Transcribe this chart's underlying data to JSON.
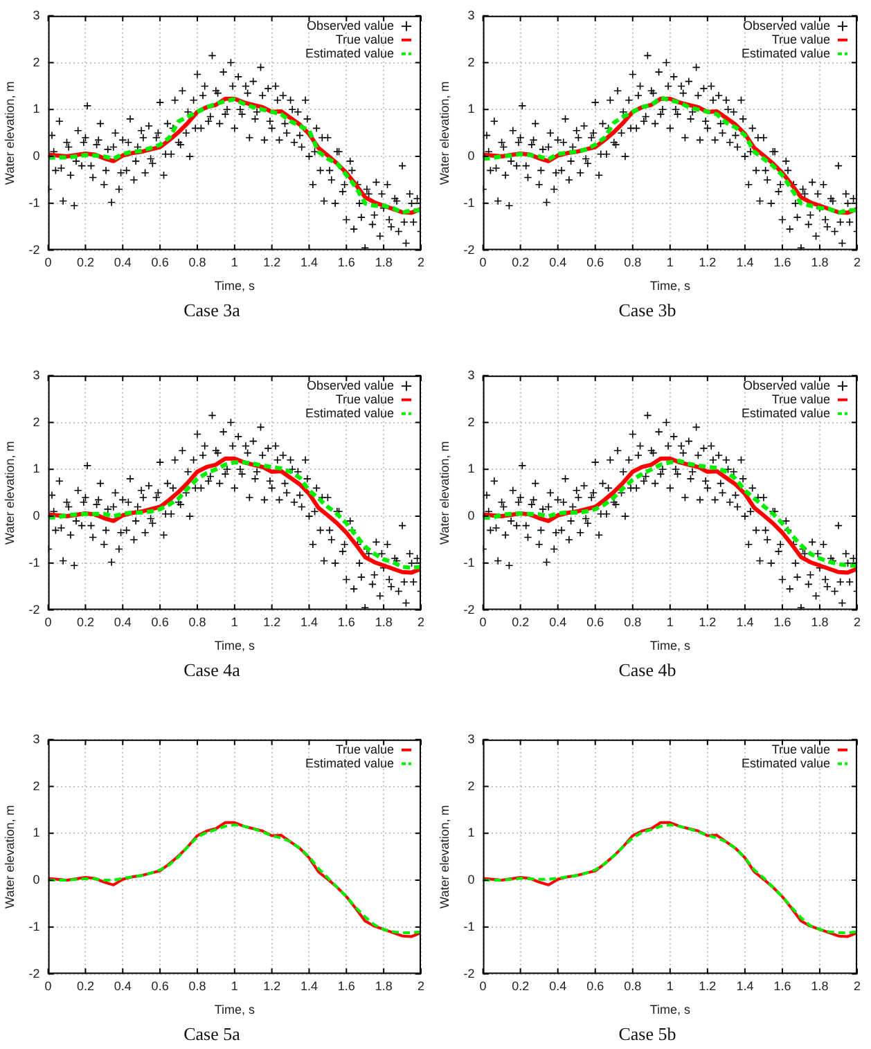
{
  "chart_data": [
    {
      "type": "line",
      "title": "Case 3a",
      "xlabel": "Time, s",
      "ylabel": "Water elevation, m",
      "xlim": [
        0,
        2
      ],
      "ylim": [
        -2,
        3
      ],
      "xticks": [
        0,
        0.2,
        0.4,
        0.6,
        0.8,
        1,
        1.2,
        1.4,
        1.6,
        1.8,
        2
      ],
      "yticks": [
        -2,
        -1,
        0,
        1,
        2,
        3
      ],
      "grid": true,
      "legend": "top right",
      "x": [
        0,
        0.05,
        0.1,
        0.15,
        0.2,
        0.25,
        0.3,
        0.35,
        0.4,
        0.45,
        0.5,
        0.55,
        0.6,
        0.65,
        0.7,
        0.75,
        0.8,
        0.85,
        0.9,
        0.95,
        1,
        1.05,
        1.1,
        1.15,
        1.2,
        1.25,
        1.3,
        1.35,
        1.4,
        1.45,
        1.5,
        1.55,
        1.6,
        1.65,
        1.7,
        1.75,
        1.8,
        1.85,
        1.9,
        1.95,
        2
      ],
      "series": [
        {
          "name": "Observed value",
          "type": "scatter",
          "marker": "cross",
          "color": "#000000",
          "x": [
            0,
            0.02,
            0.04,
            0.06,
            0.08,
            0.1,
            0.12,
            0.14,
            0.16,
            0.18,
            0.2,
            0.21,
            0.24,
            0.26,
            0.28,
            0.3,
            0.32,
            0.34,
            0.36,
            0.38,
            0.4,
            0.42,
            0.44,
            0.46,
            0.48,
            0.5,
            0.52,
            0.54,
            0.56,
            0.58,
            0.6,
            0.62,
            0.64,
            0.66,
            0.68,
            0.7,
            0.72,
            0.74,
            0.76,
            0.78,
            0.8,
            0.82,
            0.84,
            0.86,
            0.88,
            0.9,
            0.92,
            0.94,
            0.96,
            0.98,
            1,
            1.02,
            1.04,
            1.06,
            1.08,
            1.1,
            1.12,
            1.14,
            1.16,
            1.18,
            1.2,
            1.22,
            1.24,
            1.26,
            1.28,
            1.3,
            1.32,
            1.34,
            1.36,
            1.38,
            1.4,
            1.42,
            1.44,
            1.46,
            1.48,
            1.5,
            1.52,
            1.54,
            1.56,
            1.58,
            1.6,
            1.62,
            1.64,
            1.66,
            1.68,
            1.7,
            1.72,
            1.74,
            1.76,
            1.78,
            1.8,
            1.82,
            1.84,
            1.86,
            1.88,
            1.9,
            1.92,
            1.94,
            1.96,
            1.98,
            2,
            0.03,
            0.07,
            0.11,
            0.15,
            0.19,
            0.23,
            0.27,
            0.31,
            0.35,
            0.39,
            0.43,
            0.47,
            0.51,
            0.55,
            0.59,
            0.63,
            0.67,
            0.71,
            0.75,
            0.79,
            0.83,
            0.87,
            0.91,
            0.95,
            0.99,
            1.03,
            1.07,
            1.11,
            1.15,
            1.19,
            1.23,
            1.27,
            1.31,
            1.35,
            1.39,
            1.43,
            1.47,
            1.51,
            1.55,
            1.59,
            1.63,
            1.67,
            1.71,
            1.75,
            1.79,
            1.83,
            1.87,
            1.91,
            1.95
          ],
          "values": [
            -0.7,
            0.45,
            -0.3,
            0.75,
            -0.95,
            0.3,
            -0.4,
            -1.05,
            0.55,
            -0.2,
            0.4,
            1.08,
            -0.45,
            0.25,
            0.7,
            -0.6,
            0.15,
            -0.98,
            0.5,
            -0.7,
            0.35,
            -0.3,
            0.8,
            -0.5,
            0.2,
            0.55,
            -0.35,
            0.65,
            -0.15,
            0.4,
            1.15,
            -0.4,
            0.7,
            0.05,
            1.2,
            0.3,
            1.4,
            0.5,
            0.0,
            1.2,
            1.75,
            0.6,
            1.5,
            0.75,
            2.15,
            1.4,
            0.7,
            1.8,
            1.0,
            2.0,
            0.6,
            1.7,
            0.9,
            1.5,
            0.4,
            1.6,
            0.95,
            1.9,
            0.35,
            1.45,
            0.6,
            1.5,
            0.35,
            1.3,
            0.5,
            1.2,
            0.3,
            0.95,
            0.2,
            1.2,
            0.0,
            -0.6,
            0.6,
            -0.3,
            -0.95,
            0.4,
            -0.5,
            -1.0,
            0.1,
            -0.75,
            -1.35,
            -0.1,
            -1.55,
            -0.6,
            -1.3,
            -1.95,
            -0.8,
            -1.45,
            -0.55,
            -1.7,
            -1.1,
            -0.6,
            -1.5,
            -0.9,
            -1.6,
            -0.2,
            -1.85,
            -0.8,
            -1.4,
            -0.9,
            -1.6,
            0.1,
            -0.25,
            0.2,
            -0.1,
            0.3,
            -0.2,
            0.35,
            -0.3,
            0.2,
            -0.35,
            0.3,
            -0.1,
            0.4,
            -0.05,
            0.5,
            0.05,
            0.6,
            0.25,
            0.95,
            0.6,
            1.3,
            0.85,
            1.35,
            0.9,
            1.5,
            1.0,
            1.35,
            0.8,
            1.3,
            0.75,
            1.2,
            0.7,
            1.0,
            0.45,
            0.8,
            0.1,
            0.4,
            -0.3,
            0.1,
            -0.6,
            -0.3,
            -1.0,
            -0.7,
            -1.25,
            -0.8,
            -1.35,
            -0.95,
            -1.4,
            -1.0
          ]
        },
        {
          "name": "True value",
          "color": "#ff0000",
          "values": [
            0.04,
            0.02,
            0.0,
            0.03,
            0.06,
            0.04,
            -0.04,
            -0.1,
            0.02,
            0.07,
            0.1,
            0.15,
            0.2,
            0.35,
            0.52,
            0.72,
            0.95,
            1.05,
            1.1,
            1.23,
            1.23,
            1.15,
            1.1,
            1.05,
            0.95,
            0.96,
            0.82,
            0.68,
            0.48,
            0.18,
            0.02,
            -0.15,
            -0.35,
            -0.6,
            -0.87,
            -0.98,
            -1.05,
            -1.12,
            -1.19,
            -1.2,
            -1.12
          ]
        },
        {
          "name": "Estimated value",
          "line_style": "dashed",
          "color": "#00ee00",
          "values": [
            -0.03,
            -0.02,
            -0.02,
            0.0,
            0.03,
            0.02,
            0.0,
            -0.05,
            0.05,
            0.1,
            0.12,
            0.18,
            0.25,
            0.4,
            0.75,
            0.85,
            0.95,
            1.05,
            1.12,
            1.18,
            1.22,
            1.12,
            1.05,
            1.0,
            0.95,
            0.9,
            0.75,
            0.65,
            0.55,
            0.1,
            -0.05,
            -0.15,
            -0.4,
            -0.65,
            -1.0,
            -1.05,
            -1.05,
            -1.1,
            -1.2,
            -1.15,
            -1.15
          ]
        }
      ]
    },
    {
      "type": "line",
      "title": "Case 3b",
      "xlabel": "Time, s",
      "ylabel": "Water elevation, m",
      "xlim": [
        0,
        2
      ],
      "ylim": [
        -2,
        3
      ],
      "xticks": [
        0,
        0.2,
        0.4,
        0.6,
        0.8,
        1,
        1.2,
        1.4,
        1.6,
        1.8,
        2
      ],
      "yticks": [
        -2,
        -1,
        0,
        1,
        2,
        3
      ],
      "grid": true,
      "legend": "top right",
      "x": [
        0,
        0.05,
        0.1,
        0.15,
        0.2,
        0.25,
        0.3,
        0.35,
        0.4,
        0.45,
        0.5,
        0.55,
        0.6,
        0.65,
        0.7,
        0.75,
        0.8,
        0.85,
        0.9,
        0.95,
        1,
        1.05,
        1.1,
        1.15,
        1.2,
        1.25,
        1.3,
        1.35,
        1.4,
        1.45,
        1.5,
        1.55,
        1.6,
        1.65,
        1.7,
        1.75,
        1.8,
        1.85,
        1.9,
        1.95,
        2
      ],
      "series": [
        {
          "name": "Observed value",
          "type": "scatter",
          "marker": "cross",
          "color": "#000000",
          "x": [
            0,
            0.02,
            0.04,
            0.06,
            0.08,
            0.1,
            0.12,
            0.14,
            0.16,
            0.18,
            0.2,
            0.21,
            0.24,
            0.26,
            0.28,
            0.3,
            0.32,
            0.34,
            0.36,
            0.38,
            0.4,
            0.42,
            0.44,
            0.46,
            0.48,
            0.5,
            0.52,
            0.54,
            0.56,
            0.58,
            0.6,
            0.62,
            0.64,
            0.66,
            0.68,
            0.7,
            0.72,
            0.74,
            0.76,
            0.78,
            0.8,
            0.82,
            0.84,
            0.86,
            0.88,
            0.9,
            0.92,
            0.94,
            0.96,
            0.98,
            1,
            1.02,
            1.04,
            1.06,
            1.08,
            1.1,
            1.12,
            1.14,
            1.16,
            1.18,
            1.2,
            1.22,
            1.24,
            1.26,
            1.28,
            1.3,
            1.32,
            1.34,
            1.36,
            1.38,
            1.4,
            1.42,
            1.44,
            1.46,
            1.48,
            1.5,
            1.52,
            1.54,
            1.56,
            1.58,
            1.6,
            1.62,
            1.64,
            1.66,
            1.68,
            1.7,
            1.72,
            1.74,
            1.76,
            1.78,
            1.8,
            1.82,
            1.84,
            1.86,
            1.88,
            1.9,
            1.92,
            1.94,
            1.96,
            1.98,
            2,
            0.03,
            0.07,
            0.11,
            0.15,
            0.19,
            0.23,
            0.27,
            0.31,
            0.35,
            0.39,
            0.43,
            0.47,
            0.51,
            0.55,
            0.59,
            0.63,
            0.67,
            0.71,
            0.75,
            0.79,
            0.83,
            0.87,
            0.91,
            0.95,
            0.99,
            1.03,
            1.07,
            1.11,
            1.15,
            1.19,
            1.23,
            1.27,
            1.31,
            1.35,
            1.39,
            1.43,
            1.47,
            1.51,
            1.55,
            1.59,
            1.63,
            1.67,
            1.71,
            1.75,
            1.79,
            1.83,
            1.87,
            1.91,
            1.95
          ],
          "values": [
            -0.7,
            0.45,
            -0.3,
            0.75,
            -0.95,
            0.3,
            -0.4,
            -1.05,
            0.55,
            -0.2,
            0.4,
            1.08,
            -0.45,
            0.25,
            0.7,
            -0.6,
            0.15,
            -0.98,
            0.5,
            -0.7,
            0.35,
            -0.3,
            0.8,
            -0.5,
            0.2,
            0.55,
            -0.35,
            0.65,
            -0.15,
            0.4,
            1.15,
            -0.4,
            0.7,
            0.05,
            1.2,
            0.3,
            1.4,
            0.5,
            0.0,
            1.2,
            1.75,
            0.6,
            1.5,
            0.75,
            2.15,
            1.4,
            0.7,
            1.8,
            1.0,
            2.0,
            0.6,
            1.7,
            0.9,
            1.5,
            0.4,
            1.6,
            0.95,
            1.9,
            0.35,
            1.45,
            0.6,
            1.5,
            0.35,
            1.3,
            0.5,
            1.2,
            0.3,
            0.95,
            0.2,
            1.2,
            0.0,
            -0.6,
            0.6,
            -0.3,
            -0.95,
            0.4,
            -0.5,
            -1.0,
            0.1,
            -0.75,
            -1.35,
            -0.1,
            -1.55,
            -0.6,
            -1.3,
            -1.95,
            -0.8,
            -1.45,
            -0.55,
            -1.7,
            -1.1,
            -0.6,
            -1.5,
            -0.9,
            -1.6,
            -0.2,
            -1.85,
            -0.8,
            -1.4,
            -0.9,
            -1.6,
            0.1,
            -0.25,
            0.2,
            -0.1,
            0.3,
            -0.2,
            0.35,
            -0.3,
            0.2,
            -0.35,
            0.3,
            -0.1,
            0.4,
            -0.05,
            0.5,
            0.05,
            0.6,
            0.25,
            0.95,
            0.6,
            1.3,
            0.85,
            1.35,
            0.9,
            1.5,
            1.0,
            1.35,
            0.8,
            1.3,
            0.75,
            1.2,
            0.7,
            1.0,
            0.45,
            0.8,
            0.1,
            0.4,
            -0.3,
            0.1,
            -0.6,
            -0.3,
            -1.0,
            -0.7,
            -1.25,
            -0.8,
            -1.35,
            -0.95,
            -1.4,
            -1.0
          ]
        },
        {
          "name": "True value",
          "color": "#ff0000",
          "values": [
            0.04,
            0.02,
            0.0,
            0.03,
            0.06,
            0.04,
            -0.04,
            -0.1,
            0.02,
            0.07,
            0.1,
            0.15,
            0.2,
            0.35,
            0.52,
            0.72,
            0.95,
            1.05,
            1.1,
            1.23,
            1.23,
            1.15,
            1.1,
            1.05,
            0.95,
            0.96,
            0.82,
            0.68,
            0.48,
            0.18,
            0.02,
            -0.15,
            -0.35,
            -0.6,
            -0.87,
            -0.98,
            -1.05,
            -1.12,
            -1.19,
            -1.2,
            -1.12
          ]
        },
        {
          "name": "Estimated value",
          "line_style": "dashed",
          "color": "#00ee00",
          "values": [
            -0.05,
            -0.03,
            0.0,
            0.02,
            0.05,
            0.03,
            0.0,
            -0.06,
            0.05,
            0.08,
            0.1,
            0.15,
            0.25,
            0.4,
            0.72,
            0.85,
            0.95,
            1.05,
            1.1,
            1.25,
            1.2,
            1.15,
            1.05,
            1.0,
            0.95,
            0.9,
            0.72,
            0.62,
            0.45,
            0.1,
            -0.05,
            -0.2,
            -0.4,
            -0.7,
            -1.0,
            -1.05,
            -1.1,
            -1.12,
            -1.2,
            -1.15,
            -1.15
          ]
        }
      ]
    },
    {
      "type": "line",
      "title": "Case 4a",
      "xlabel": "Time, s",
      "ylabel": "Water elevation, m",
      "xlim": [
        0,
        2
      ],
      "ylim": [
        -2,
        3
      ],
      "xticks": [
        0,
        0.2,
        0.4,
        0.6,
        0.8,
        1,
        1.2,
        1.4,
        1.6,
        1.8,
        2
      ],
      "yticks": [
        -2,
        -1,
        0,
        1,
        2,
        3
      ],
      "grid": true,
      "legend": "top right",
      "x": [
        0,
        0.05,
        0.1,
        0.15,
        0.2,
        0.25,
        0.3,
        0.35,
        0.4,
        0.45,
        0.5,
        0.55,
        0.6,
        0.65,
        0.7,
        0.75,
        0.8,
        0.85,
        0.9,
        0.95,
        1,
        1.05,
        1.1,
        1.15,
        1.2,
        1.25,
        1.3,
        1.35,
        1.4,
        1.45,
        1.5,
        1.55,
        1.6,
        1.65,
        1.7,
        1.75,
        1.8,
        1.85,
        1.9,
        1.95,
        2
      ],
      "series": [
        {
          "name": "Observed value",
          "type": "scatter",
          "marker": "cross",
          "color": "#000000",
          "x": [
            0,
            0.02,
            0.04,
            0.06,
            0.08,
            0.1,
            0.12,
            0.14,
            0.16,
            0.18,
            0.2,
            0.21,
            0.24,
            0.26,
            0.28,
            0.3,
            0.32,
            0.34,
            0.36,
            0.38,
            0.4,
            0.42,
            0.44,
            0.46,
            0.48,
            0.5,
            0.52,
            0.54,
            0.56,
            0.58,
            0.6,
            0.62,
            0.64,
            0.66,
            0.68,
            0.7,
            0.72,
            0.74,
            0.76,
            0.78,
            0.8,
            0.82,
            0.84,
            0.86,
            0.88,
            0.9,
            0.92,
            0.94,
            0.96,
            0.98,
            1,
            1.02,
            1.04,
            1.06,
            1.08,
            1.1,
            1.12,
            1.14,
            1.16,
            1.18,
            1.2,
            1.22,
            1.24,
            1.26,
            1.28,
            1.3,
            1.32,
            1.34,
            1.36,
            1.38,
            1.4,
            1.42,
            1.44,
            1.46,
            1.48,
            1.5,
            1.52,
            1.54,
            1.56,
            1.58,
            1.6,
            1.62,
            1.64,
            1.66,
            1.68,
            1.7,
            1.72,
            1.74,
            1.76,
            1.78,
            1.8,
            1.82,
            1.84,
            1.86,
            1.88,
            1.9,
            1.92,
            1.94,
            1.96,
            1.98,
            2,
            0.03,
            0.07,
            0.11,
            0.15,
            0.19,
            0.23,
            0.27,
            0.31,
            0.35,
            0.39,
            0.43,
            0.47,
            0.51,
            0.55,
            0.59,
            0.63,
            0.67,
            0.71,
            0.75,
            0.79,
            0.83,
            0.87,
            0.91,
            0.95,
            0.99,
            1.03,
            1.07,
            1.11,
            1.15,
            1.19,
            1.23,
            1.27,
            1.31,
            1.35,
            1.39,
            1.43,
            1.47,
            1.51,
            1.55,
            1.59,
            1.63,
            1.67,
            1.71,
            1.75,
            1.79,
            1.83,
            1.87,
            1.91,
            1.95
          ],
          "values": [
            -0.7,
            0.45,
            -0.3,
            0.75,
            -0.95,
            0.3,
            -0.4,
            -1.05,
            0.55,
            -0.2,
            0.4,
            1.08,
            -0.45,
            0.25,
            0.7,
            -0.6,
            0.15,
            -0.98,
            0.5,
            -0.7,
            0.35,
            -0.3,
            0.8,
            -0.5,
            0.2,
            0.55,
            -0.35,
            0.65,
            -0.15,
            0.4,
            1.15,
            -0.4,
            0.7,
            0.05,
            1.2,
            0.3,
            1.4,
            0.5,
            0.0,
            1.2,
            1.75,
            0.6,
            1.5,
            0.75,
            2.15,
            1.4,
            0.7,
            1.8,
            1.0,
            2.0,
            0.6,
            1.7,
            0.9,
            1.5,
            0.4,
            1.6,
            0.95,
            1.9,
            0.35,
            1.45,
            0.6,
            1.5,
            0.35,
            1.3,
            0.5,
            1.2,
            0.3,
            0.95,
            0.2,
            1.2,
            0.0,
            -0.6,
            0.6,
            -0.3,
            -0.95,
            0.4,
            -0.5,
            -1.0,
            0.1,
            -0.75,
            -1.35,
            -0.1,
            -1.55,
            -0.6,
            -1.3,
            -1.95,
            -0.8,
            -1.45,
            -0.55,
            -1.7,
            -1.1,
            -0.6,
            -1.5,
            -0.9,
            -1.6,
            -0.2,
            -1.85,
            -0.8,
            -1.4,
            -0.9,
            -1.6,
            0.1,
            -0.25,
            0.2,
            -0.1,
            0.3,
            -0.2,
            0.35,
            -0.3,
            0.2,
            -0.35,
            0.3,
            -0.1,
            0.4,
            -0.05,
            0.5,
            0.05,
            0.6,
            0.25,
            0.95,
            0.6,
            1.3,
            0.85,
            1.35,
            0.9,
            1.5,
            1.0,
            1.35,
            0.8,
            1.3,
            0.75,
            1.2,
            0.7,
            1.0,
            0.45,
            0.8,
            0.1,
            0.4,
            -0.3,
            0.1,
            -0.6,
            -0.3,
            -1.0,
            -0.7,
            -1.25,
            -0.8,
            -1.35,
            -0.95,
            -1.4,
            -1.0
          ]
        },
        {
          "name": "True value",
          "color": "#ff0000",
          "values": [
            0.04,
            0.02,
            0.0,
            0.03,
            0.06,
            0.04,
            -0.04,
            -0.1,
            0.02,
            0.07,
            0.1,
            0.15,
            0.2,
            0.35,
            0.52,
            0.72,
            0.95,
            1.05,
            1.1,
            1.23,
            1.23,
            1.15,
            1.1,
            1.05,
            0.95,
            0.96,
            0.82,
            0.68,
            0.48,
            0.18,
            0.02,
            -0.15,
            -0.35,
            -0.6,
            -0.87,
            -0.98,
            -1.05,
            -1.12,
            -1.19,
            -1.2,
            -1.12
          ]
        },
        {
          "name": "Estimated value",
          "line_style": "dashed",
          "color": "#00ee00",
          "values": [
            -0.03,
            -0.02,
            0.02,
            0.04,
            0.05,
            0.05,
            0.05,
            0.0,
            0.05,
            0.08,
            0.08,
            0.1,
            0.15,
            0.25,
            0.38,
            0.6,
            0.8,
            0.92,
            1.0,
            1.1,
            1.15,
            1.15,
            1.12,
            1.08,
            1.05,
            1.02,
            0.95,
            0.82,
            0.55,
            0.38,
            0.2,
            0.05,
            -0.15,
            -0.4,
            -0.65,
            -0.8,
            -0.92,
            -0.98,
            -1.08,
            -1.1,
            -1.08
          ]
        }
      ]
    },
    {
      "type": "line",
      "title": "Case 4b",
      "xlabel": "Time, s",
      "ylabel": "Water elevation, m",
      "xlim": [
        0,
        2
      ],
      "ylim": [
        -2,
        3
      ],
      "xticks": [
        0,
        0.2,
        0.4,
        0.6,
        0.8,
        1,
        1.2,
        1.4,
        1.6,
        1.8,
        2
      ],
      "yticks": [
        -2,
        -1,
        0,
        1,
        2,
        3
      ],
      "grid": true,
      "legend": "top right",
      "x": [
        0,
        0.05,
        0.1,
        0.15,
        0.2,
        0.25,
        0.3,
        0.35,
        0.4,
        0.45,
        0.5,
        0.55,
        0.6,
        0.65,
        0.7,
        0.75,
        0.8,
        0.85,
        0.9,
        0.95,
        1,
        1.05,
        1.1,
        1.15,
        1.2,
        1.25,
        1.3,
        1.35,
        1.4,
        1.45,
        1.5,
        1.55,
        1.6,
        1.65,
        1.7,
        1.75,
        1.8,
        1.85,
        1.9,
        1.95,
        2
      ],
      "series": [
        {
          "name": "Observed value",
          "type": "scatter",
          "marker": "cross",
          "color": "#000000",
          "x": [
            0,
            0.02,
            0.04,
            0.06,
            0.08,
            0.1,
            0.12,
            0.14,
            0.16,
            0.18,
            0.2,
            0.21,
            0.24,
            0.26,
            0.28,
            0.3,
            0.32,
            0.34,
            0.36,
            0.38,
            0.4,
            0.42,
            0.44,
            0.46,
            0.48,
            0.5,
            0.52,
            0.54,
            0.56,
            0.58,
            0.6,
            0.62,
            0.64,
            0.66,
            0.68,
            0.7,
            0.72,
            0.74,
            0.76,
            0.78,
            0.8,
            0.82,
            0.84,
            0.86,
            0.88,
            0.9,
            0.92,
            0.94,
            0.96,
            0.98,
            1,
            1.02,
            1.04,
            1.06,
            1.08,
            1.1,
            1.12,
            1.14,
            1.16,
            1.18,
            1.2,
            1.22,
            1.24,
            1.26,
            1.28,
            1.3,
            1.32,
            1.34,
            1.36,
            1.38,
            1.4,
            1.42,
            1.44,
            1.46,
            1.48,
            1.5,
            1.52,
            1.54,
            1.56,
            1.58,
            1.6,
            1.62,
            1.64,
            1.66,
            1.68,
            1.7,
            1.72,
            1.74,
            1.76,
            1.78,
            1.8,
            1.82,
            1.84,
            1.86,
            1.88,
            1.9,
            1.92,
            1.94,
            1.96,
            1.98,
            2,
            0.03,
            0.07,
            0.11,
            0.15,
            0.19,
            0.23,
            0.27,
            0.31,
            0.35,
            0.39,
            0.43,
            0.47,
            0.51,
            0.55,
            0.59,
            0.63,
            0.67,
            0.71,
            0.75,
            0.79,
            0.83,
            0.87,
            0.91,
            0.95,
            0.99,
            1.03,
            1.07,
            1.11,
            1.15,
            1.19,
            1.23,
            1.27,
            1.31,
            1.35,
            1.39,
            1.43,
            1.47,
            1.51,
            1.55,
            1.59,
            1.63,
            1.67,
            1.71,
            1.75,
            1.79,
            1.83,
            1.87,
            1.91,
            1.95
          ],
          "values": [
            -0.7,
            0.45,
            -0.3,
            0.75,
            -0.95,
            0.3,
            -0.4,
            -1.05,
            0.55,
            -0.2,
            0.4,
            1.08,
            -0.45,
            0.25,
            0.7,
            -0.6,
            0.15,
            -0.98,
            0.5,
            -0.7,
            0.35,
            -0.3,
            0.8,
            -0.5,
            0.2,
            0.55,
            -0.35,
            0.65,
            -0.15,
            0.4,
            1.15,
            -0.4,
            0.7,
            0.05,
            1.2,
            0.3,
            1.4,
            0.5,
            0.0,
            1.2,
            1.75,
            0.6,
            1.5,
            0.75,
            2.15,
            1.4,
            0.7,
            1.8,
            1.0,
            2.0,
            0.6,
            1.7,
            0.9,
            1.5,
            0.4,
            1.6,
            0.95,
            1.9,
            0.35,
            1.45,
            0.6,
            1.5,
            0.35,
            1.3,
            0.5,
            1.2,
            0.3,
            0.95,
            0.2,
            1.2,
            0.0,
            -0.6,
            0.6,
            -0.3,
            -0.95,
            0.4,
            -0.5,
            -1.0,
            0.1,
            -0.75,
            -1.35,
            -0.1,
            -1.55,
            -0.6,
            -1.3,
            -1.95,
            -0.8,
            -1.45,
            -0.55,
            -1.7,
            -1.1,
            -0.6,
            -1.5,
            -0.9,
            -1.6,
            -0.2,
            -1.85,
            -0.8,
            -1.4,
            -0.9,
            -1.6,
            0.1,
            -0.25,
            0.2,
            -0.1,
            0.3,
            -0.2,
            0.35,
            -0.3,
            0.2,
            -0.35,
            0.3,
            -0.1,
            0.4,
            -0.05,
            0.5,
            0.05,
            0.6,
            0.25,
            0.95,
            0.6,
            1.3,
            0.85,
            1.35,
            0.9,
            1.5,
            1.0,
            1.35,
            0.8,
            1.3,
            0.75,
            1.2,
            0.7,
            1.0,
            0.45,
            0.8,
            0.1,
            0.4,
            -0.3,
            0.1,
            -0.6,
            -0.3,
            -1.0,
            -0.7,
            -1.25,
            -0.8,
            -1.35,
            -0.95,
            -1.4,
            -1.0
          ]
        },
        {
          "name": "True value",
          "color": "#ff0000",
          "values": [
            0.04,
            0.02,
            0.0,
            0.03,
            0.06,
            0.04,
            -0.04,
            -0.1,
            0.02,
            0.07,
            0.1,
            0.15,
            0.2,
            0.35,
            0.52,
            0.72,
            0.95,
            1.05,
            1.1,
            1.23,
            1.23,
            1.15,
            1.1,
            1.05,
            0.95,
            0.96,
            0.82,
            0.68,
            0.48,
            0.18,
            0.02,
            -0.15,
            -0.35,
            -0.6,
            -0.87,
            -0.98,
            -1.05,
            -1.12,
            -1.19,
            -1.2,
            -1.12
          ]
        },
        {
          "name": "Estimated value",
          "line_style": "dashed",
          "color": "#00ee00",
          "values": [
            -0.03,
            -0.03,
            0.03,
            0.05,
            0.06,
            0.05,
            0.04,
            0.0,
            0.06,
            0.08,
            0.08,
            0.1,
            0.15,
            0.25,
            0.4,
            0.6,
            0.78,
            0.9,
            1.0,
            1.1,
            1.15,
            1.18,
            1.12,
            1.08,
            1.05,
            1.03,
            0.95,
            0.8,
            0.55,
            0.38,
            0.22,
            0.05,
            -0.15,
            -0.4,
            -0.62,
            -0.8,
            -0.9,
            -0.97,
            -1.02,
            -1.05,
            -1.05
          ]
        }
      ]
    },
    {
      "type": "line",
      "title": "Case 5a",
      "xlabel": "Time, s",
      "ylabel": "Water elevation, m",
      "xlim": [
        0,
        2
      ],
      "ylim": [
        -2,
        3
      ],
      "xticks": [
        0,
        0.2,
        0.4,
        0.6,
        0.8,
        1,
        1.2,
        1.4,
        1.6,
        1.8,
        2
      ],
      "yticks": [
        -2,
        -1,
        0,
        1,
        2,
        3
      ],
      "grid": true,
      "legend": "top right",
      "x": [
        0,
        0.05,
        0.1,
        0.15,
        0.2,
        0.25,
        0.3,
        0.35,
        0.4,
        0.45,
        0.5,
        0.55,
        0.6,
        0.65,
        0.7,
        0.75,
        0.8,
        0.85,
        0.9,
        0.95,
        1,
        1.05,
        1.1,
        1.15,
        1.2,
        1.25,
        1.3,
        1.35,
        1.4,
        1.45,
        1.5,
        1.55,
        1.6,
        1.65,
        1.7,
        1.75,
        1.8,
        1.85,
        1.9,
        1.95,
        2
      ],
      "series": [
        {
          "name": "True value",
          "color": "#ff0000",
          "values": [
            0.04,
            0.02,
            0.0,
            0.03,
            0.06,
            0.04,
            -0.04,
            -0.1,
            0.02,
            0.07,
            0.1,
            0.15,
            0.2,
            0.35,
            0.52,
            0.72,
            0.95,
            1.05,
            1.1,
            1.23,
            1.23,
            1.15,
            1.1,
            1.05,
            0.95,
            0.96,
            0.82,
            0.68,
            0.48,
            0.18,
            0.02,
            -0.15,
            -0.35,
            -0.6,
            -0.87,
            -0.98,
            -1.05,
            -1.12,
            -1.19,
            -1.2,
            -1.12
          ]
        },
        {
          "name": "Estimated value",
          "line_style": "dashed",
          "color": "#00ee00",
          "values": [
            0.0,
            0.0,
            0.0,
            0.02,
            0.03,
            0.03,
            0.0,
            0.0,
            0.04,
            0.07,
            0.1,
            0.15,
            0.22,
            0.33,
            0.5,
            0.72,
            0.92,
            1.02,
            1.08,
            1.15,
            1.18,
            1.15,
            1.1,
            1.03,
            0.95,
            0.9,
            0.82,
            0.68,
            0.5,
            0.25,
            0.05,
            -0.15,
            -0.35,
            -0.58,
            -0.78,
            -0.95,
            -1.05,
            -1.1,
            -1.12,
            -1.12,
            -1.1
          ]
        }
      ]
    },
    {
      "type": "line",
      "title": "Case 5b",
      "xlabel": "Time, s",
      "ylabel": "Water elevation, m",
      "xlim": [
        0,
        2
      ],
      "ylim": [
        -2,
        3
      ],
      "xticks": [
        0,
        0.2,
        0.4,
        0.6,
        0.8,
        1,
        1.2,
        1.4,
        1.6,
        1.8,
        2
      ],
      "yticks": [
        -2,
        -1,
        0,
        1,
        2,
        3
      ],
      "grid": true,
      "legend": "top right",
      "x": [
        0,
        0.05,
        0.1,
        0.15,
        0.2,
        0.25,
        0.3,
        0.35,
        0.4,
        0.45,
        0.5,
        0.55,
        0.6,
        0.65,
        0.7,
        0.75,
        0.8,
        0.85,
        0.9,
        0.95,
        1,
        1.05,
        1.1,
        1.15,
        1.2,
        1.25,
        1.3,
        1.35,
        1.4,
        1.45,
        1.5,
        1.55,
        1.6,
        1.65,
        1.7,
        1.75,
        1.8,
        1.85,
        1.9,
        1.95,
        2
      ],
      "series": [
        {
          "name": "True value",
          "color": "#ff0000",
          "values": [
            0.04,
            0.02,
            0.0,
            0.03,
            0.06,
            0.04,
            -0.04,
            -0.1,
            0.02,
            0.07,
            0.1,
            0.15,
            0.2,
            0.35,
            0.52,
            0.72,
            0.95,
            1.05,
            1.1,
            1.23,
            1.23,
            1.15,
            1.1,
            1.05,
            0.95,
            0.96,
            0.82,
            0.68,
            0.48,
            0.18,
            0.02,
            -0.15,
            -0.35,
            -0.6,
            -0.87,
            -0.98,
            -1.05,
            -1.12,
            -1.19,
            -1.2,
            -1.12
          ]
        },
        {
          "name": "Estimated value",
          "line_style": "dashed",
          "color": "#00ee00",
          "values": [
            0.0,
            0.0,
            0.0,
            0.02,
            0.04,
            0.03,
            0.02,
            0.02,
            0.04,
            0.07,
            0.1,
            0.15,
            0.22,
            0.35,
            0.52,
            0.72,
            0.9,
            1.02,
            1.08,
            1.15,
            1.18,
            1.15,
            1.1,
            1.03,
            0.96,
            0.9,
            0.82,
            0.68,
            0.48,
            0.22,
            0.05,
            -0.15,
            -0.35,
            -0.58,
            -0.8,
            -0.97,
            -1.05,
            -1.1,
            -1.12,
            -1.12,
            -1.1
          ]
        }
      ]
    }
  ]
}
